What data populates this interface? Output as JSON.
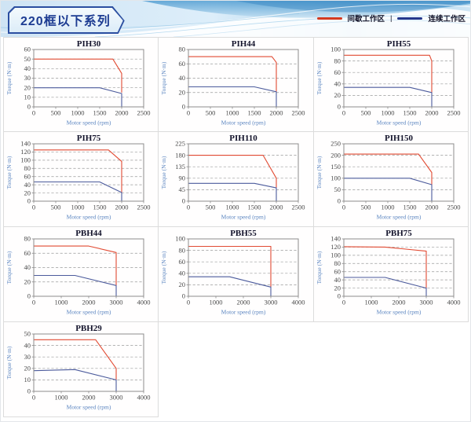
{
  "header": {
    "title": "220框以下系列",
    "legend_separator": "|",
    "legend": [
      {
        "id": "intermittent",
        "label": "间歇工作区",
        "color": "#d43a20"
      },
      {
        "id": "continuous",
        "label": "连续工作区",
        "color": "#24388c"
      }
    ]
  },
  "colors": {
    "intermittent_line": "#e14a32",
    "continuous_line": "#4c5b9c",
    "gridline": "#9a9a9a",
    "plot_border": "#8c8c8c",
    "tick_text": "#4a4a4a",
    "axis_label_text": "#5b85c0"
  },
  "chart_data": [
    {
      "type": "line",
      "name": "PIH30",
      "xlabel": "Motor speed (rpm)",
      "ylabel": "Torque (N·m)",
      "xlim": [
        0,
        2500
      ],
      "xticks": [
        0,
        500,
        1000,
        1500,
        2000,
        2500
      ],
      "ylim": [
        0,
        60
      ],
      "yticks": [
        0,
        10,
        20,
        30,
        40,
        50,
        60
      ],
      "grid": "dashed-horizontal",
      "legend_position": "none",
      "series": [
        {
          "name": "间歇工作区",
          "color": "#e14a32",
          "points": [
            [
              0,
              50
            ],
            [
              1800,
              50
            ],
            [
              2000,
              35
            ],
            [
              2000,
              15
            ]
          ]
        },
        {
          "name": "连续工作区",
          "color": "#4c5b9c",
          "points": [
            [
              0,
              20
            ],
            [
              1500,
              20
            ],
            [
              2000,
              14
            ],
            [
              2000,
              0
            ]
          ]
        }
      ]
    },
    {
      "type": "line",
      "name": "PIH44",
      "xlabel": "Motor speed (rpm)",
      "ylabel": "Torque (N·m)",
      "xlim": [
        0,
        2500
      ],
      "xticks": [
        0,
        500,
        1000,
        1500,
        2000,
        2500
      ],
      "ylim": [
        0,
        80
      ],
      "yticks": [
        0,
        20,
        40,
        60,
        80
      ],
      "grid": "dashed-horizontal",
      "legend_position": "none",
      "series": [
        {
          "name": "间歇工作区",
          "color": "#e14a32",
          "points": [
            [
              0,
              70
            ],
            [
              1900,
              70
            ],
            [
              2000,
              62
            ],
            [
              2000,
              21
            ]
          ]
        },
        {
          "name": "连续工作区",
          "color": "#4c5b9c",
          "points": [
            [
              0,
              28
            ],
            [
              1500,
              28
            ],
            [
              2000,
              21
            ],
            [
              2000,
              0
            ]
          ]
        }
      ]
    },
    {
      "type": "line",
      "name": "PIH55",
      "xlabel": "Motor speed (rpm)",
      "ylabel": "Torque (N·m)",
      "xlim": [
        0,
        2500
      ],
      "xticks": [
        0,
        500,
        1000,
        1500,
        2000,
        2500
      ],
      "ylim": [
        0,
        100
      ],
      "yticks": [
        0,
        20,
        40,
        60,
        80,
        100
      ],
      "grid": "dashed-horizontal",
      "legend_position": "none",
      "series": [
        {
          "name": "间歇工作区",
          "color": "#e14a32",
          "points": [
            [
              0,
              90
            ],
            [
              1950,
              90
            ],
            [
              2000,
              80
            ],
            [
              2000,
              25
            ]
          ]
        },
        {
          "name": "连续工作区",
          "color": "#4c5b9c",
          "points": [
            [
              0,
              34
            ],
            [
              1500,
              34
            ],
            [
              2000,
              25
            ],
            [
              2000,
              0
            ]
          ]
        }
      ]
    },
    {
      "type": "line",
      "name": "PIH75",
      "xlabel": "Motor speed (rpm)",
      "ylabel": "Torque (N·m)",
      "xlim": [
        0,
        2500
      ],
      "xticks": [
        0,
        500,
        1000,
        1500,
        2000,
        2500
      ],
      "ylim": [
        0,
        140
      ],
      "yticks": [
        0,
        20,
        40,
        60,
        80,
        100,
        120,
        140
      ],
      "grid": "dashed-horizontal",
      "legend_position": "none",
      "series": [
        {
          "name": "间歇工作区",
          "color": "#e14a32",
          "points": [
            [
              0,
              125
            ],
            [
              1700,
              125
            ],
            [
              2000,
              97
            ],
            [
              2000,
              21
            ]
          ]
        },
        {
          "name": "连续工作区",
          "color": "#4c5b9c",
          "points": [
            [
              0,
              47
            ],
            [
              1500,
              47
            ],
            [
              2000,
              21
            ],
            [
              2000,
              0
            ]
          ]
        }
      ]
    },
    {
      "type": "line",
      "name": "PIH110",
      "xlabel": "Motor speed (rpm)",
      "ylabel": "Torque (N·m)",
      "xlim": [
        0,
        2500
      ],
      "xticks": [
        0,
        500,
        1000,
        1500,
        2000,
        2500
      ],
      "ylim": [
        0,
        225
      ],
      "yticks": [
        0,
        45,
        90,
        135,
        180,
        225
      ],
      "grid": "dashed-horizontal",
      "legend_position": "none",
      "series": [
        {
          "name": "间歇工作区",
          "color": "#e14a32",
          "points": [
            [
              0,
              180
            ],
            [
              1700,
              180
            ],
            [
              2000,
              90
            ],
            [
              2000,
              52
            ]
          ]
        },
        {
          "name": "连续工作区",
          "color": "#4c5b9c",
          "points": [
            [
              0,
              70
            ],
            [
              1500,
              70
            ],
            [
              2000,
              52
            ],
            [
              2000,
              0
            ]
          ]
        }
      ]
    },
    {
      "type": "line",
      "name": "PIH150",
      "xlabel": "Motor speed (rpm)",
      "ylabel": "Torque (N·m)",
      "xlim": [
        0,
        2500
      ],
      "xticks": [
        0,
        500,
        1000,
        1500,
        2000,
        2500
      ],
      "ylim": [
        0,
        250
      ],
      "yticks": [
        0,
        50,
        100,
        150,
        200,
        250
      ],
      "grid": "dashed-horizontal",
      "legend_position": "none",
      "series": [
        {
          "name": "间歇工作区",
          "color": "#e14a32",
          "points": [
            [
              0,
              205
            ],
            [
              1700,
              205
            ],
            [
              2000,
              125
            ],
            [
              2000,
              72
            ]
          ]
        },
        {
          "name": "连续工作区",
          "color": "#4c5b9c",
          "points": [
            [
              0,
              100
            ],
            [
              1500,
              100
            ],
            [
              2000,
              72
            ],
            [
              2000,
              0
            ]
          ]
        }
      ]
    },
    {
      "type": "line",
      "name": "PBH44",
      "xlabel": "Motor speed (rpm)",
      "ylabel": "Torque (N·m)",
      "xlim": [
        0,
        4000
      ],
      "xticks": [
        0,
        1000,
        2000,
        3000,
        4000
      ],
      "ylim": [
        0,
        80
      ],
      "yticks": [
        0,
        20,
        40,
        60,
        80
      ],
      "grid": "dashed-horizontal",
      "legend_position": "none",
      "series": [
        {
          "name": "间歇工作区",
          "color": "#e14a32",
          "points": [
            [
              0,
              70
            ],
            [
              2000,
              70
            ],
            [
              3000,
              61
            ],
            [
              3000,
              15
            ]
          ]
        },
        {
          "name": "连续工作区",
          "color": "#4c5b9c",
          "points": [
            [
              0,
              29
            ],
            [
              1500,
              29
            ],
            [
              3000,
              15
            ],
            [
              3000,
              0
            ]
          ]
        }
      ]
    },
    {
      "type": "line",
      "name": "PBH55",
      "xlabel": "Motor speed (rpm)",
      "ylabel": "Torque (N·m)",
      "xlim": [
        0,
        4000
      ],
      "xticks": [
        0,
        1000,
        2000,
        3000,
        4000
      ],
      "ylim": [
        0,
        100
      ],
      "yticks": [
        0,
        20,
        40,
        60,
        80,
        100
      ],
      "grid": "dashed-horizontal",
      "legend_position": "none",
      "series": [
        {
          "name": "间歇工作区",
          "color": "#e14a32",
          "points": [
            [
              0,
              87
            ],
            [
              3000,
              87
            ],
            [
              3000,
              16
            ]
          ]
        },
        {
          "name": "连续工作区",
          "color": "#4c5b9c",
          "points": [
            [
              0,
              34
            ],
            [
              1500,
              34
            ],
            [
              3000,
              16
            ],
            [
              3000,
              0
            ]
          ]
        }
      ]
    },
    {
      "type": "line",
      "name": "PBH75",
      "xlabel": "Motor speed (rpm)",
      "ylabel": "Torque (N·m)",
      "xlim": [
        0,
        4000
      ],
      "xticks": [
        0,
        1000,
        2000,
        3000,
        4000
      ],
      "ylim": [
        0,
        140
      ],
      "yticks": [
        0,
        20,
        40,
        60,
        80,
        100,
        120,
        140
      ],
      "grid": "dashed-horizontal",
      "legend_position": "none",
      "series": [
        {
          "name": "间歇工作区",
          "color": "#e14a32",
          "points": [
            [
              0,
              121
            ],
            [
              1500,
              120
            ],
            [
              3000,
              110
            ],
            [
              3000,
              20
            ]
          ]
        },
        {
          "name": "连续工作区",
          "color": "#4c5b9c",
          "points": [
            [
              0,
              46
            ],
            [
              1500,
              46
            ],
            [
              3000,
              20
            ],
            [
              3000,
              0
            ]
          ]
        }
      ]
    },
    {
      "type": "line",
      "name": "PBH29",
      "xlabel": "Motor speed (rpm)",
      "ylabel": "Torque (N·m)",
      "xlim": [
        0,
        4000
      ],
      "xticks": [
        0,
        1000,
        2000,
        3000,
        4000
      ],
      "ylim": [
        0,
        50
      ],
      "yticks": [
        0,
        10,
        20,
        30,
        40,
        50
      ],
      "grid": "dashed-horizontal",
      "legend_position": "none",
      "series": [
        {
          "name": "间歇工作区",
          "color": "#e14a32",
          "points": [
            [
              0,
              45
            ],
            [
              2250,
              45
            ],
            [
              3000,
              20
            ],
            [
              3000,
              10
            ]
          ]
        },
        {
          "name": "连续工作区",
          "color": "#4c5b9c",
          "points": [
            [
              0,
              18
            ],
            [
              1500,
              19
            ],
            [
              3000,
              10
            ],
            [
              3000,
              0
            ]
          ]
        }
      ]
    }
  ]
}
